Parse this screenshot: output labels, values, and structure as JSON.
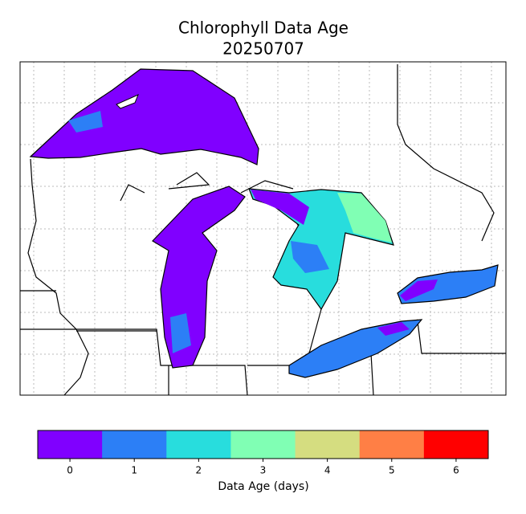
{
  "map": {
    "title": "Chlorophyll Data Age",
    "subtitle": "20250707",
    "colorbar": {
      "label": "Data Age (days)",
      "lim": [
        -0.5,
        6.5
      ],
      "ticks": [
        0,
        1,
        2,
        3,
        4,
        5,
        6
      ],
      "colors": [
        "#8000ff",
        "#2c7ff6",
        "#28dddd",
        "#80ffb4",
        "#d5dd80",
        "#ff7f45",
        "#ff0000"
      ]
    }
  }
}
